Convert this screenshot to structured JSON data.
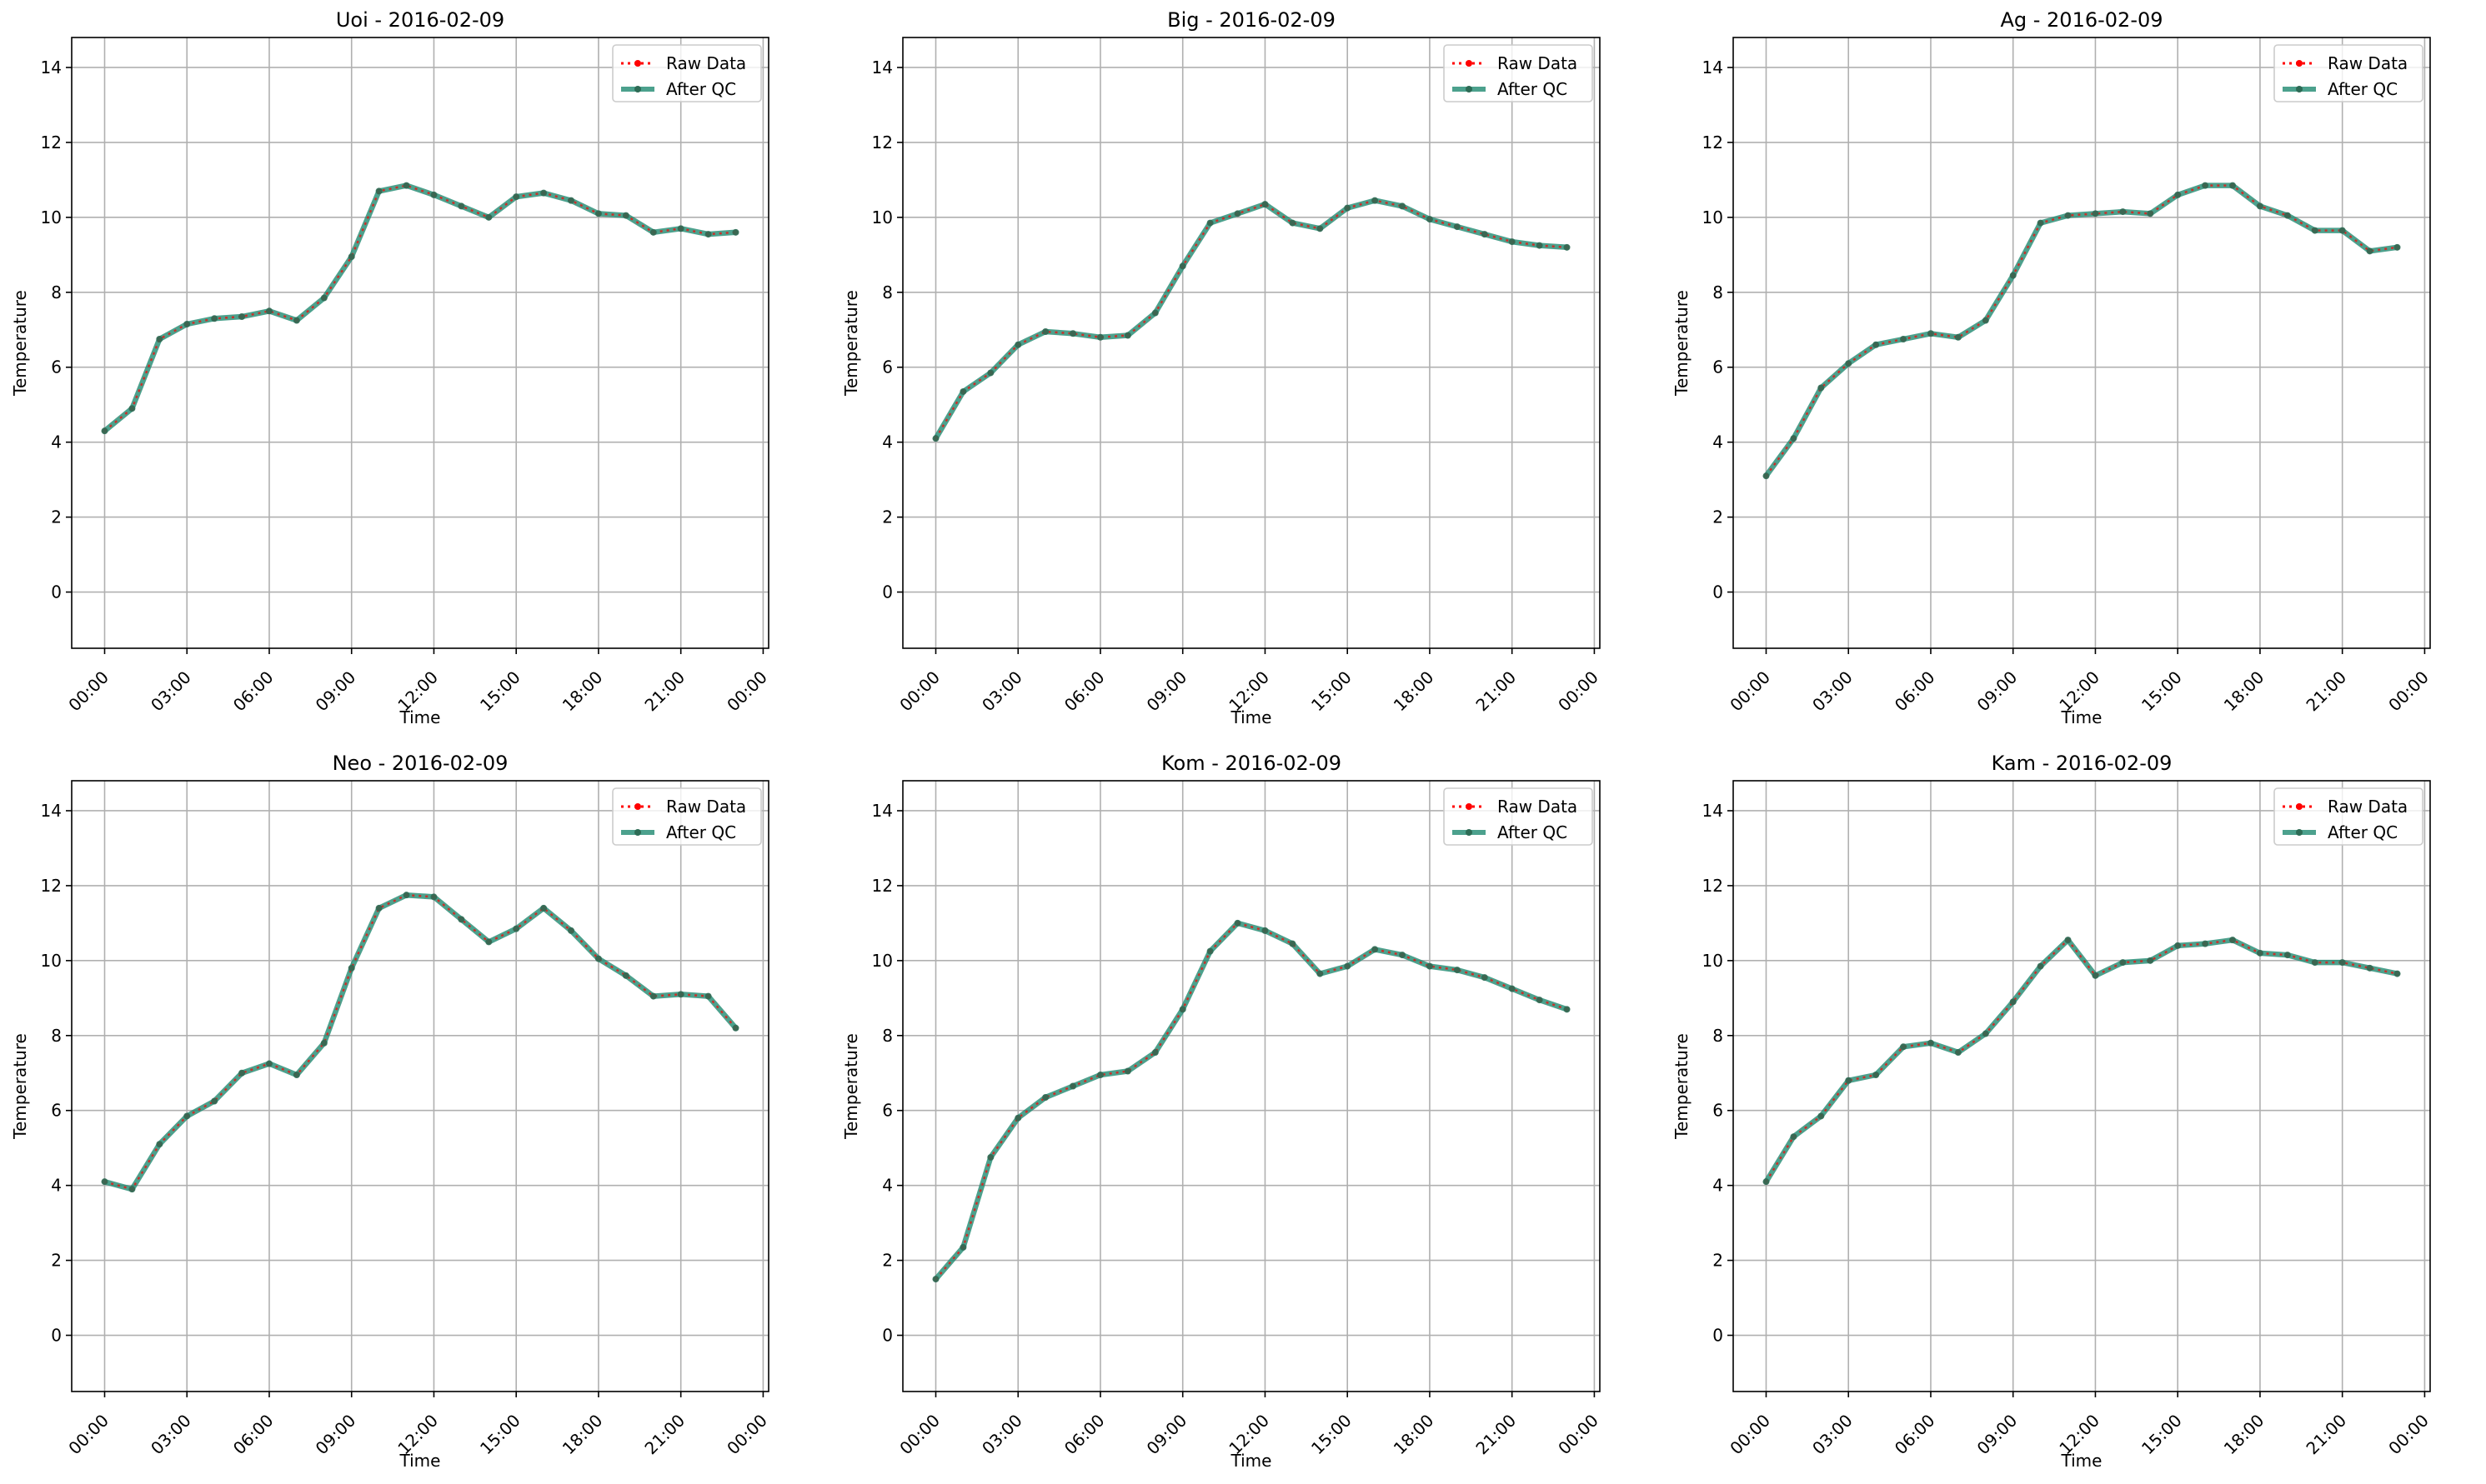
{
  "figure": {
    "background": "#ffffff"
  },
  "colors": {
    "raw": "#ff0000",
    "qc": "#1f8a70",
    "grid": "#b0b0b0"
  },
  "chart_data": [
    {
      "type": "line",
      "title": "Uoi - 2016-02-09",
      "xlabel": "Time",
      "ylabel": "Temperature",
      "xlim": [
        -1.2,
        24.2
      ],
      "ylim": [
        -1.5,
        14.8
      ],
      "yticks": [
        0,
        2,
        4,
        6,
        8,
        10,
        12,
        14
      ],
      "xticks": [
        "00:00",
        "03:00",
        "06:00",
        "09:00",
        "12:00",
        "15:00",
        "18:00",
        "21:00",
        "00:00"
      ],
      "grid": true,
      "legend": {
        "position": "top-right",
        "entries": [
          "Raw Data",
          "After QC"
        ]
      },
      "x": [
        0,
        1,
        2,
        3,
        4,
        5,
        6,
        7,
        8,
        9,
        10,
        11,
        12,
        13,
        14,
        15,
        16,
        17,
        18,
        19,
        20,
        21,
        22,
        23
      ],
      "series": [
        {
          "name": "Raw Data",
          "values": [
            4.3,
            4.9,
            6.75,
            7.15,
            7.3,
            7.35,
            7.5,
            7.25,
            7.85,
            8.95,
            10.7,
            10.85,
            10.6,
            10.3,
            10.0,
            10.55,
            10.65,
            10.45,
            10.1,
            10.05,
            9.6,
            9.7,
            9.55,
            9.6
          ]
        },
        {
          "name": "After QC",
          "values": [
            4.3,
            4.9,
            6.75,
            7.15,
            7.3,
            7.35,
            7.5,
            7.25,
            7.85,
            8.95,
            10.7,
            10.85,
            10.6,
            10.3,
            10.0,
            10.55,
            10.65,
            10.45,
            10.1,
            10.05,
            9.6,
            9.7,
            9.55,
            9.6
          ]
        }
      ]
    },
    {
      "type": "line",
      "title": "Big - 2016-02-09",
      "xlabel": "Time",
      "ylabel": "Temperature",
      "xlim": [
        -1.2,
        24.2
      ],
      "ylim": [
        -1.5,
        14.8
      ],
      "yticks": [
        0,
        2,
        4,
        6,
        8,
        10,
        12,
        14
      ],
      "xticks": [
        "00:00",
        "03:00",
        "06:00",
        "09:00",
        "12:00",
        "15:00",
        "18:00",
        "21:00",
        "00:00"
      ],
      "grid": true,
      "legend": {
        "position": "top-right",
        "entries": [
          "Raw Data",
          "After QC"
        ]
      },
      "x": [
        0,
        1,
        2,
        3,
        4,
        5,
        6,
        7,
        8,
        9,
        10,
        11,
        12,
        13,
        14,
        15,
        16,
        17,
        18,
        19,
        20,
        21,
        22,
        23
      ],
      "series": [
        {
          "name": "Raw Data",
          "values": [
            4.1,
            5.35,
            5.85,
            6.6,
            6.95,
            6.9,
            6.8,
            6.85,
            7.45,
            8.7,
            9.85,
            10.1,
            10.35,
            9.85,
            9.7,
            10.25,
            10.45,
            10.3,
            9.95,
            9.75,
            9.55,
            9.35,
            9.25,
            9.2
          ]
        },
        {
          "name": "After QC",
          "values": [
            4.1,
            5.35,
            5.85,
            6.6,
            6.95,
            6.9,
            6.8,
            6.85,
            7.45,
            8.7,
            9.85,
            10.1,
            10.35,
            9.85,
            9.7,
            10.25,
            10.45,
            10.3,
            9.95,
            9.75,
            9.55,
            9.35,
            9.25,
            9.2
          ]
        }
      ]
    },
    {
      "type": "line",
      "title": "Ag - 2016-02-09",
      "xlabel": "Time",
      "ylabel": "Temperature",
      "xlim": [
        -1.2,
        24.2
      ],
      "ylim": [
        -1.5,
        14.8
      ],
      "yticks": [
        0,
        2,
        4,
        6,
        8,
        10,
        12,
        14
      ],
      "xticks": [
        "00:00",
        "03:00",
        "06:00",
        "09:00",
        "12:00",
        "15:00",
        "18:00",
        "21:00",
        "00:00"
      ],
      "grid": true,
      "legend": {
        "position": "top-right",
        "entries": [
          "Raw Data",
          "After QC"
        ]
      },
      "x": [
        0,
        1,
        2,
        3,
        4,
        5,
        6,
        7,
        8,
        9,
        10,
        11,
        12,
        13,
        14,
        15,
        16,
        17,
        18,
        19,
        20,
        21,
        22,
        23
      ],
      "series": [
        {
          "name": "Raw Data",
          "values": [
            3.1,
            4.1,
            5.45,
            6.1,
            6.6,
            6.75,
            6.9,
            6.8,
            7.25,
            8.45,
            9.85,
            10.05,
            10.1,
            10.15,
            10.1,
            10.6,
            10.85,
            10.85,
            10.3,
            10.05,
            9.65,
            9.65,
            9.1,
            9.2
          ]
        },
        {
          "name": "After QC",
          "values": [
            3.1,
            4.1,
            5.45,
            6.1,
            6.6,
            6.75,
            6.9,
            6.8,
            7.25,
            8.45,
            9.85,
            10.05,
            10.1,
            10.15,
            10.1,
            10.6,
            10.85,
            10.85,
            10.3,
            10.05,
            9.65,
            9.65,
            9.1,
            9.2
          ]
        }
      ]
    },
    {
      "type": "line",
      "title": "Neo - 2016-02-09",
      "xlabel": "Time",
      "ylabel": "Temperature",
      "xlim": [
        -1.2,
        24.2
      ],
      "ylim": [
        -1.5,
        14.8
      ],
      "yticks": [
        0,
        2,
        4,
        6,
        8,
        10,
        12,
        14
      ],
      "xticks": [
        "00:00",
        "03:00",
        "06:00",
        "09:00",
        "12:00",
        "15:00",
        "18:00",
        "21:00",
        "00:00"
      ],
      "grid": true,
      "legend": {
        "position": "top-right",
        "entries": [
          "Raw Data",
          "After QC"
        ]
      },
      "x": [
        0,
        1,
        2,
        3,
        4,
        5,
        6,
        7,
        8,
        9,
        10,
        11,
        12,
        13,
        14,
        15,
        16,
        17,
        18,
        19,
        20,
        21,
        22,
        23
      ],
      "series": [
        {
          "name": "Raw Data",
          "values": [
            4.1,
            3.9,
            5.1,
            5.85,
            6.25,
            7.0,
            7.25,
            6.95,
            7.8,
            9.8,
            11.4,
            11.75,
            11.7,
            11.1,
            10.5,
            10.85,
            11.4,
            10.8,
            10.05,
            9.6,
            9.05,
            9.1,
            9.05,
            8.2
          ]
        },
        {
          "name": "After QC",
          "values": [
            4.1,
            3.9,
            5.1,
            5.85,
            6.25,
            7.0,
            7.25,
            6.95,
            7.8,
            9.8,
            11.4,
            11.75,
            11.7,
            11.1,
            10.5,
            10.85,
            11.4,
            10.8,
            10.05,
            9.6,
            9.05,
            9.1,
            9.05,
            8.2
          ]
        }
      ]
    },
    {
      "type": "line",
      "title": "Kom - 2016-02-09",
      "xlabel": "Time",
      "ylabel": "Temperature",
      "xlim": [
        -1.2,
        24.2
      ],
      "ylim": [
        -1.5,
        14.8
      ],
      "yticks": [
        0,
        2,
        4,
        6,
        8,
        10,
        12,
        14
      ],
      "xticks": [
        "00:00",
        "03:00",
        "06:00",
        "09:00",
        "12:00",
        "15:00",
        "18:00",
        "21:00",
        "00:00"
      ],
      "grid": true,
      "legend": {
        "position": "top-right",
        "entries": [
          "Raw Data",
          "After QC"
        ]
      },
      "x": [
        0,
        1,
        2,
        3,
        4,
        5,
        6,
        7,
        8,
        9,
        10,
        11,
        12,
        13,
        14,
        15,
        16,
        17,
        18,
        19,
        20,
        21,
        22,
        23
      ],
      "series": [
        {
          "name": "Raw Data",
          "values": [
            1.5,
            2.35,
            4.75,
            5.8,
            6.35,
            6.65,
            6.95,
            7.05,
            7.55,
            8.7,
            10.25,
            11.0,
            10.8,
            10.45,
            9.65,
            9.85,
            10.3,
            10.15,
            9.85,
            9.75,
            9.55,
            9.25,
            8.95,
            8.7
          ]
        },
        {
          "name": "After QC",
          "values": [
            1.5,
            2.35,
            4.75,
            5.8,
            6.35,
            6.65,
            6.95,
            7.05,
            7.55,
            8.7,
            10.25,
            11.0,
            10.8,
            10.45,
            9.65,
            9.85,
            10.3,
            10.15,
            9.85,
            9.75,
            9.55,
            9.25,
            8.95,
            8.7
          ]
        }
      ]
    },
    {
      "type": "line",
      "title": "Kam - 2016-02-09",
      "xlabel": "Time",
      "ylabel": "Temperature",
      "xlim": [
        -1.2,
        24.2
      ],
      "ylim": [
        -1.5,
        14.8
      ],
      "yticks": [
        0,
        2,
        4,
        6,
        8,
        10,
        12,
        14
      ],
      "xticks": [
        "00:00",
        "03:00",
        "06:00",
        "09:00",
        "12:00",
        "15:00",
        "18:00",
        "21:00",
        "00:00"
      ],
      "grid": true,
      "legend": {
        "position": "top-right",
        "entries": [
          "Raw Data",
          "After QC"
        ]
      },
      "x": [
        0,
        1,
        2,
        3,
        4,
        5,
        6,
        7,
        8,
        9,
        10,
        11,
        12,
        13,
        14,
        15,
        16,
        17,
        18,
        19,
        20,
        21,
        22,
        23
      ],
      "series": [
        {
          "name": "Raw Data",
          "values": [
            4.1,
            5.3,
            5.85,
            6.8,
            6.95,
            7.7,
            7.8,
            7.55,
            8.05,
            8.9,
            9.85,
            10.55,
            9.6,
            9.95,
            10.0,
            10.4,
            10.45,
            10.55,
            10.2,
            10.15,
            9.95,
            9.95,
            9.8,
            9.65
          ]
        },
        {
          "name": "After QC",
          "values": [
            4.1,
            5.3,
            5.85,
            6.8,
            6.95,
            7.7,
            7.8,
            7.55,
            8.05,
            8.9,
            9.85,
            10.55,
            9.6,
            9.95,
            10.0,
            10.4,
            10.45,
            10.55,
            10.2,
            10.15,
            9.95,
            9.95,
            9.8,
            9.65
          ]
        }
      ]
    }
  ]
}
